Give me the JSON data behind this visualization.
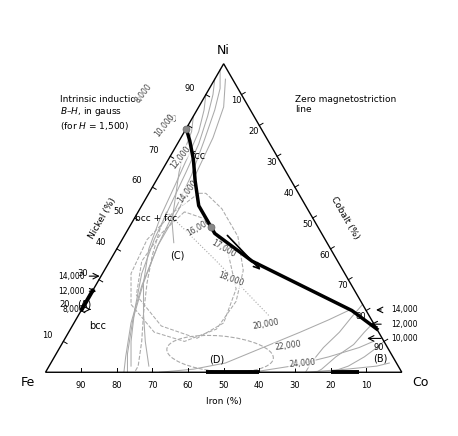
{
  "background_color": "#ffffff",
  "contour_color": "#aaaaaa",
  "thick_line_color": "#000000",
  "gray_dot_color": "#888888",
  "tick_vals": [
    10,
    20,
    30,
    40,
    50,
    60,
    70,
    80,
    90
  ],
  "corner_labels": {
    "Ni": "Ni",
    "Fe": "Fe",
    "Co": "Co"
  },
  "axis_labels": {
    "nickel": "Nickel (%)",
    "iron": "Iron (%)",
    "cobalt": "Cobalt (%)"
  },
  "annotation_text": "Intrinsic induction\nB–H, in gauss\n(for H = 1,500)",
  "zero_mag_text": "Zero magnetostriction\nline"
}
